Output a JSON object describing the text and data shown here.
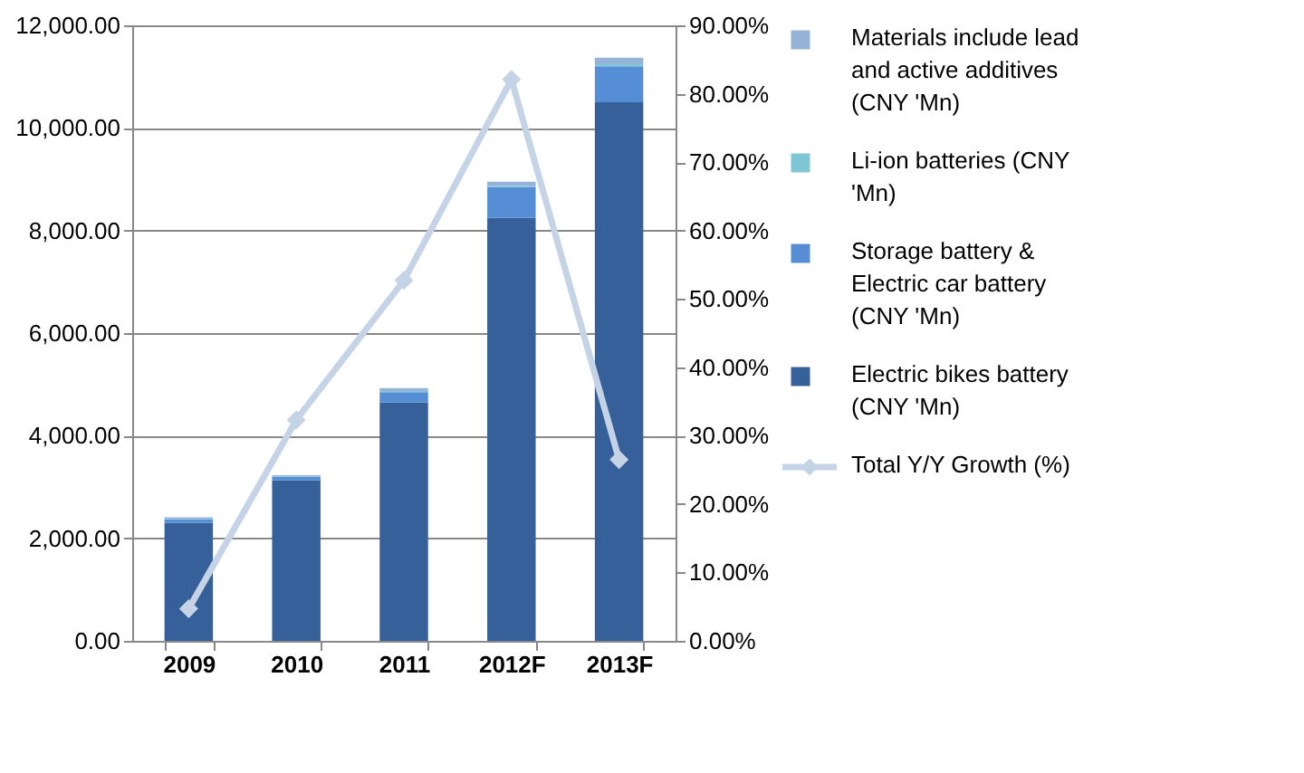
{
  "chart_data": {
    "type": "bar",
    "stacked": true,
    "categories": [
      "2009",
      "2010",
      "2011",
      "2012F",
      "2013F"
    ],
    "series": [
      {
        "name": "Electric bikes battery (CNY 'Mn)",
        "color": "#36609a",
        "values": [
          2300,
          3130,
          4650,
          8250,
          10500
        ]
      },
      {
        "name": "Storage battery & Electric car battery (CNY 'Mn)",
        "color": "#558ed5",
        "values": [
          70,
          70,
          200,
          600,
          700
        ]
      },
      {
        "name": "Li-ion batteries (CNY 'Mn)",
        "color": "#7fc6d6",
        "values": [
          10,
          10,
          20,
          20,
          40
        ]
      },
      {
        "name": "Materials include lead and active additives (CNY 'Mn)",
        "color": "#95b3d7",
        "values": [
          30,
          20,
          60,
          80,
          130
        ]
      },
      {
        "name": "Total Y/Y Growth (%)",
        "type": "line",
        "axis": "y2",
        "color": "#c5d3e6",
        "marker": "diamond",
        "values": [
          4.7,
          32.3,
          52.7,
          82.1,
          26.5
        ]
      }
    ],
    "ylim": [
      0,
      12000
    ],
    "yticks": [
      {
        "value": 0,
        "label": "0.00"
      },
      {
        "value": 2000,
        "label": "2,000.00"
      },
      {
        "value": 4000,
        "label": "4,000.00"
      },
      {
        "value": 6000,
        "label": "6,000.00"
      },
      {
        "value": 8000,
        "label": "8,000.00"
      },
      {
        "value": 10000,
        "label": "10,000.00"
      },
      {
        "value": 12000,
        "label": "12,000.00"
      }
    ],
    "y2lim": [
      0,
      90
    ],
    "y2ticks": [
      {
        "value": 0,
        "label": "0.00%"
      },
      {
        "value": 10,
        "label": "10.00%"
      },
      {
        "value": 20,
        "label": "20.00%"
      },
      {
        "value": 30,
        "label": "30.00%"
      },
      {
        "value": 40,
        "label": "40.00%"
      },
      {
        "value": 50,
        "label": "50.00%"
      },
      {
        "value": 60,
        "label": "60.00%"
      },
      {
        "value": 70,
        "label": "70.00%"
      },
      {
        "value": 80,
        "label": "80.00%"
      },
      {
        "value": 90,
        "label": "90.00%"
      }
    ],
    "grid": "y",
    "legend": "right"
  }
}
